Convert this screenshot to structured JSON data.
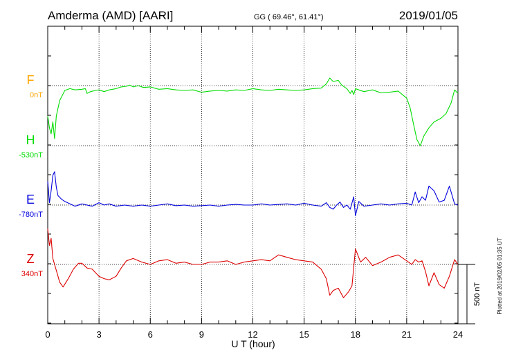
{
  "header": {
    "station": "Amderma (AMD)  [AARI]",
    "coords": "GG ( 69.46°,  61.41°)",
    "date": "2019/01/05"
  },
  "side_note": "Plotted at 2019/02/05 01:35 UT",
  "scale_label": "500 nT",
  "chart_data": {
    "type": "line",
    "xlabel": "U T (hour)",
    "xlim": [
      0,
      24
    ],
    "xticks": [
      0,
      3,
      6,
      9,
      12,
      15,
      18,
      21,
      24
    ],
    "xtick_labels": [
      "0",
      "3",
      "6",
      "9",
      "12",
      "15",
      "18",
      "21",
      "24"
    ],
    "grid": true,
    "series": [
      {
        "name": "F",
        "baseline_label": "0nT",
        "color": "#FFA500",
        "baseline_nT": 0,
        "x": [],
        "y": []
      },
      {
        "name": "H",
        "baseline_label": "-530nT",
        "color": "#00DD00",
        "baseline_nT": -530,
        "x": [
          0,
          0.1,
          0.2,
          0.3,
          0.4,
          0.5,
          0.7,
          1.0,
          1.3,
          1.6,
          2.0,
          2.2,
          2.3,
          2.5,
          2.8,
          3.0,
          3.3,
          3.6,
          4.0,
          4.3,
          4.6,
          4.8,
          5.0,
          5.3,
          5.6,
          6.0,
          6.5,
          7.0,
          7.5,
          8.0,
          8.5,
          9.0,
          9.5,
          10.0,
          10.5,
          11.0,
          11.5,
          12.0,
          12.5,
          13.0,
          13.5,
          14.0,
          14.5,
          15.0,
          15.5,
          16.0,
          16.3,
          16.5,
          16.7,
          17.0,
          17.2,
          17.5,
          17.7,
          17.8,
          17.9,
          18.0,
          18.2,
          18.5,
          19.0,
          19.5,
          20.0,
          20.5,
          21.0,
          21.2,
          21.4,
          21.6,
          21.8,
          22.0,
          22.3,
          22.6,
          23.0,
          23.3,
          23.6,
          23.8,
          24.0
        ],
        "y": [
          250,
          150,
          100,
          200,
          60,
          250,
          380,
          465,
          480,
          470,
          475,
          480,
          440,
          455,
          465,
          470,
          455,
          470,
          480,
          495,
          500,
          510,
          495,
          505,
          490,
          495,
          475,
          480,
          470,
          465,
          470,
          450,
          460,
          465,
          460,
          470,
          465,
          480,
          470,
          465,
          475,
          470,
          465,
          470,
          480,
          485,
          520,
          570,
          540,
          550,
          510,
          480,
          440,
          465,
          430,
          480,
          470,
          455,
          470,
          445,
          450,
          460,
          400,
          320,
          180,
          50,
          0,
          80,
          150,
          200,
          230,
          270,
          360,
          470,
          440
        ]
      },
      {
        "name": "E",
        "baseline_label": "-780nT",
        "color": "#0000DD",
        "baseline_nT": -780,
        "x": [
          0,
          0.1,
          0.2,
          0.3,
          0.4,
          0.5,
          0.6,
          0.8,
          1.0,
          1.3,
          1.6,
          2.0,
          2.3,
          2.6,
          3.0,
          3.3,
          3.6,
          4.0,
          4.5,
          5.0,
          5.5,
          6.0,
          6.5,
          7.0,
          7.5,
          8.0,
          8.5,
          9.0,
          9.5,
          10.0,
          10.5,
          11.0,
          11.5,
          12.0,
          12.5,
          13.0,
          13.5,
          14.0,
          14.5,
          15.0,
          15.5,
          16.0,
          16.3,
          16.5,
          16.7,
          16.9,
          17.1,
          17.3,
          17.5,
          17.7,
          17.9,
          18.0,
          18.2,
          18.5,
          19.0,
          19.5,
          20.0,
          20.5,
          21.0,
          21.3,
          21.5,
          21.7,
          21.9,
          22.1,
          22.3,
          22.6,
          22.9,
          23.2,
          23.5,
          23.8,
          24.0
        ],
        "y": [
          200,
          20,
          120,
          250,
          280,
          150,
          80,
          50,
          30,
          10,
          -10,
          10,
          0,
          -10,
          20,
          0,
          10,
          -10,
          0,
          -10,
          0,
          -10,
          0,
          10,
          -5,
          0,
          -10,
          -5,
          0,
          -10,
          0,
          5,
          0,
          0,
          10,
          0,
          5,
          10,
          0,
          15,
          0,
          -10,
          20,
          -20,
          -35,
          0,
          25,
          -20,
          0,
          -35,
          70,
          -90,
          30,
          -10,
          0,
          10,
          0,
          10,
          15,
          0,
          110,
          20,
          70,
          40,
          160,
          120,
          25,
          40,
          160,
          10,
          0
        ]
      },
      {
        "name": "Z",
        "baseline_label": "340nT",
        "color": "#DD0000",
        "baseline_nT": 340,
        "x": [
          0,
          0.1,
          0.2,
          0.3,
          0.5,
          0.7,
          0.9,
          1.2,
          1.5,
          1.8,
          2.0,
          2.3,
          2.6,
          3.0,
          3.3,
          3.6,
          4.0,
          4.3,
          4.6,
          5.0,
          5.5,
          6.0,
          6.5,
          7.0,
          7.5,
          8.0,
          8.5,
          9.0,
          9.5,
          10.0,
          10.5,
          11.0,
          11.5,
          12.0,
          12.5,
          13.0,
          13.5,
          14.0,
          14.5,
          15.0,
          15.5,
          16.0,
          16.3,
          16.5,
          16.7,
          17.0,
          17.3,
          17.6,
          17.8,
          18.0,
          18.3,
          18.6,
          19.0,
          19.5,
          20.0,
          20.5,
          21.0,
          21.3,
          21.5,
          21.7,
          21.9,
          22.1,
          22.3,
          22.6,
          22.9,
          23.2,
          23.5,
          23.8,
          24.0
        ],
        "y": [
          300,
          160,
          220,
          50,
          -50,
          -150,
          -190,
          -120,
          -40,
          10,
          10,
          -30,
          -40,
          -100,
          -120,
          -130,
          -100,
          -30,
          30,
          50,
          20,
          0,
          30,
          40,
          10,
          20,
          0,
          0,
          20,
          20,
          30,
          0,
          20,
          30,
          40,
          30,
          80,
          60,
          40,
          30,
          20,
          -40,
          -120,
          -260,
          -220,
          -200,
          -280,
          -230,
          -180,
          130,
          20,
          60,
          -10,
          20,
          60,
          80,
          30,
          0,
          40,
          20,
          30,
          -60,
          -180,
          -70,
          -170,
          -200,
          -100,
          40,
          0
        ]
      }
    ]
  }
}
